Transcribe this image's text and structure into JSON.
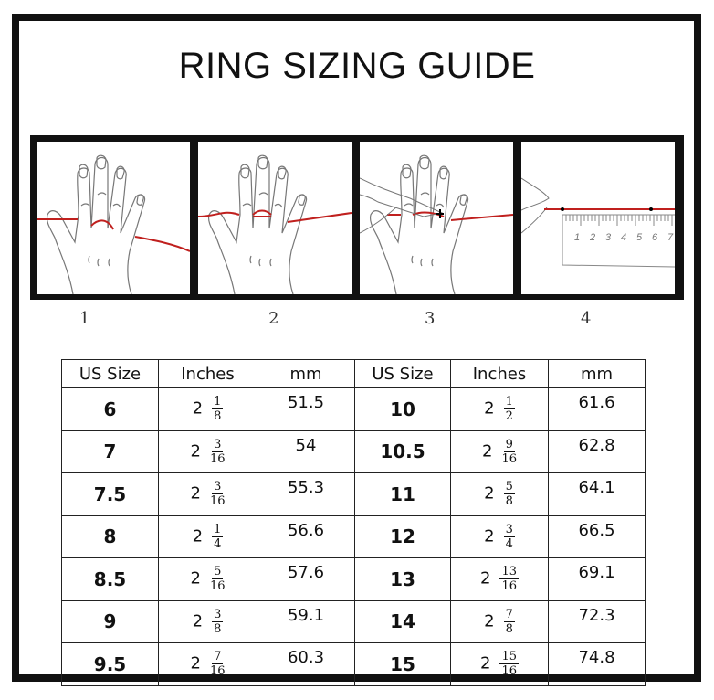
{
  "title": "RING SIZING GUIDE",
  "steps": [
    "1",
    "2",
    "3",
    "4"
  ],
  "ruler_numbers": [
    "1",
    "2",
    "3",
    "4",
    "5",
    "6",
    "7"
  ],
  "colors": {
    "string": "#c0201e",
    "frame": "#111111"
  },
  "table": {
    "headers": [
      "US Size",
      "Inches",
      "mm",
      "US Size",
      "Inches",
      "mm"
    ],
    "rows": [
      {
        "left": {
          "size": "6",
          "whole": "2",
          "num": "1",
          "den": "8",
          "mm": "51.5"
        },
        "right": {
          "size": "10",
          "whole": "2",
          "num": "1",
          "den": "2",
          "mm": "61.6"
        }
      },
      {
        "left": {
          "size": "7",
          "whole": "2",
          "num": "3",
          "den": "16",
          "mm": "54"
        },
        "right": {
          "size": "10.5",
          "whole": "2",
          "num": "9",
          "den": "16",
          "mm": "62.8"
        }
      },
      {
        "left": {
          "size": "7.5",
          "whole": "2",
          "num": "3",
          "den": "16",
          "mm": "55.3"
        },
        "right": {
          "size": "11",
          "whole": "2",
          "num": "5",
          "den": "8",
          "mm": "64.1"
        }
      },
      {
        "left": {
          "size": "8",
          "whole": "2",
          "num": "1",
          "den": "4",
          "mm": "56.6"
        },
        "right": {
          "size": "12",
          "whole": "2",
          "num": "3",
          "den": "4",
          "mm": "66.5"
        }
      },
      {
        "left": {
          "size": "8.5",
          "whole": "2",
          "num": "5",
          "den": "16",
          "mm": "57.6"
        },
        "right": {
          "size": "13",
          "whole": "2",
          "num": "13",
          "den": "16",
          "mm": "69.1"
        }
      },
      {
        "left": {
          "size": "9",
          "whole": "2",
          "num": "3",
          "den": "8",
          "mm": "59.1"
        },
        "right": {
          "size": "14",
          "whole": "2",
          "num": "7",
          "den": "8",
          "mm": "72.3"
        }
      },
      {
        "left": {
          "size": "9.5",
          "whole": "2",
          "num": "7",
          "den": "16",
          "mm": "60.3"
        },
        "right": {
          "size": "15",
          "whole": "2",
          "num": "15",
          "den": "16",
          "mm": "74.8"
        }
      }
    ]
  }
}
